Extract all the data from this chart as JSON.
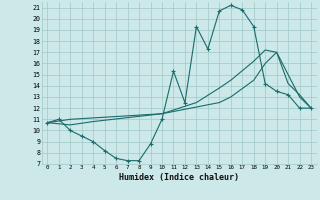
{
  "xlabel": "Humidex (Indice chaleur)",
  "bg_color": "#cce8e8",
  "grid_color": "#a0c8c8",
  "line_color": "#1a6b6b",
  "xlim": [
    -0.5,
    23.5
  ],
  "ylim": [
    7,
    21.5
  ],
  "xticks": [
    0,
    1,
    2,
    3,
    4,
    5,
    6,
    7,
    8,
    9,
    10,
    11,
    12,
    13,
    14,
    15,
    16,
    17,
    18,
    19,
    20,
    21,
    22,
    23
  ],
  "yticks": [
    7,
    8,
    9,
    10,
    11,
    12,
    13,
    14,
    15,
    16,
    17,
    18,
    19,
    20,
    21
  ],
  "curve1_x": [
    0,
    1,
    2,
    3,
    4,
    5,
    6,
    7,
    8,
    9,
    10,
    11,
    12,
    13,
    14,
    15,
    16,
    17,
    18,
    19,
    20,
    21,
    22,
    23
  ],
  "curve1_y": [
    10.7,
    11.0,
    10.0,
    9.5,
    9.0,
    8.2,
    7.5,
    7.3,
    7.3,
    8.8,
    11.0,
    15.3,
    12.5,
    19.3,
    17.3,
    20.7,
    21.2,
    20.8,
    19.3,
    14.2,
    13.5,
    13.2,
    12.0,
    12.0
  ],
  "curve2_x": [
    0,
    2,
    10,
    15,
    16,
    18,
    19,
    20,
    21,
    22,
    23
  ],
  "curve2_y": [
    10.7,
    11.0,
    11.5,
    12.5,
    13.0,
    14.5,
    16.0,
    17.0,
    14.2,
    13.2,
    12.0
  ],
  "curve3_x": [
    0,
    2,
    4,
    10,
    13,
    15,
    16,
    18,
    19,
    20,
    22,
    23
  ],
  "curve3_y": [
    10.7,
    10.5,
    10.8,
    11.5,
    12.5,
    13.8,
    14.5,
    16.2,
    17.2,
    17.0,
    13.0,
    12.0
  ]
}
